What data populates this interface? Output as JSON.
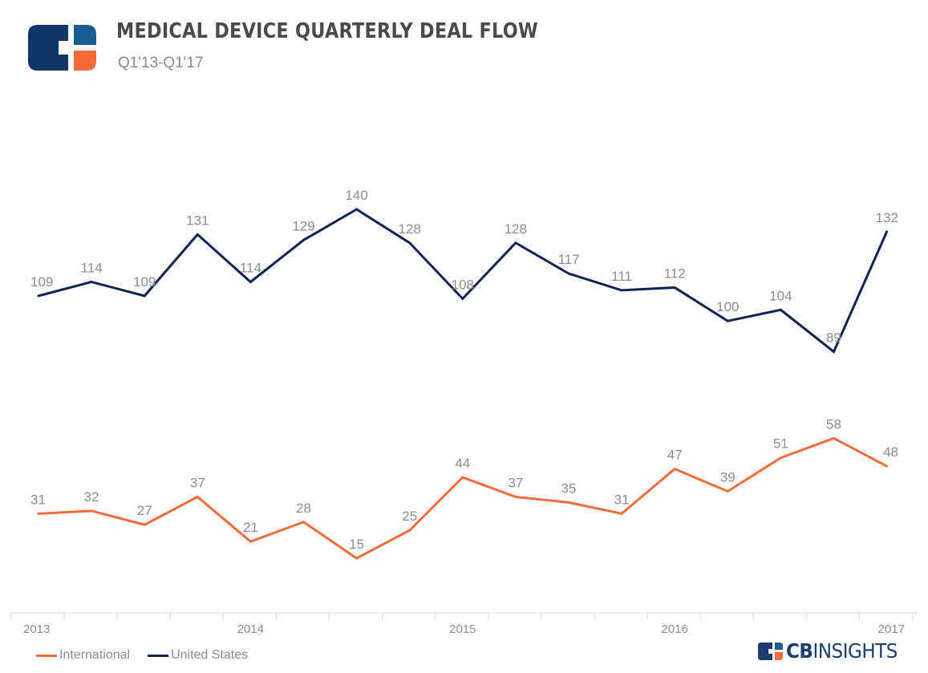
{
  "header": {
    "title": "MEDICAL DEVICE QUARTERLY DEAL FLOW",
    "subtitle": "Q1'13-Q1'17"
  },
  "brand": {
    "bold": "CB",
    "light": "INSIGHTS",
    "colors": {
      "navy": "#0f2a55",
      "orange": "#f26b3a",
      "blue": "#1b5d91"
    }
  },
  "chart_data": {
    "type": "line",
    "categories": [
      "Q1'13",
      "Q2'13",
      "Q3'13",
      "Q4'13",
      "Q1'14",
      "Q2'14",
      "Q3'14",
      "Q4'14",
      "Q1'15",
      "Q2'15",
      "Q3'15",
      "Q4'15",
      "Q1'16",
      "Q2'16",
      "Q3'16",
      "Q4'16",
      "Q1'17"
    ],
    "x_tick_labels": [
      "2013",
      "2014",
      "2015",
      "2016",
      "2017"
    ],
    "x_tick_label_indices": [
      0,
      4,
      8,
      12,
      16
    ],
    "series": [
      {
        "name": "United States",
        "color": "#0f2453",
        "values": [
          109,
          114,
          109,
          131,
          114,
          129,
          140,
          128,
          108,
          128,
          117,
          111,
          112,
          100,
          104,
          89,
          132
        ]
      },
      {
        "name": "International",
        "color": "#f26b3a",
        "values": [
          31,
          32,
          27,
          37,
          21,
          28,
          15,
          25,
          44,
          37,
          35,
          31,
          47,
          39,
          51,
          58,
          48
        ]
      }
    ],
    "data_labels": true,
    "grid": false,
    "legend_position": "bottom-left",
    "title": "MEDICAL DEVICE QUARTERLY DEAL FLOW",
    "subtitle": "Q1'13-Q1'17",
    "xlabel": "",
    "ylabel": ""
  }
}
